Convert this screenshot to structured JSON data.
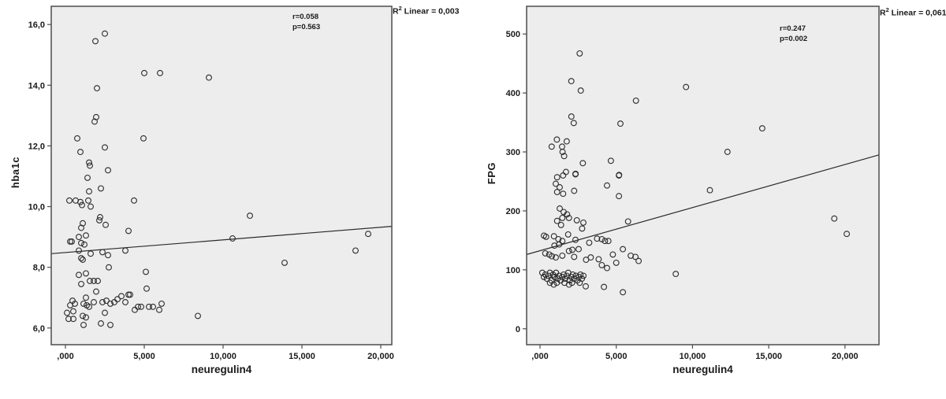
{
  "page": {
    "background": "#ffffff"
  },
  "chart_data": [
    {
      "type": "scatter",
      "title": "",
      "xlabel": "neuregulin4",
      "ylabel": "hba1c",
      "xlim": [
        -900,
        20700
      ],
      "ylim": [
        5.45,
        16.6
      ],
      "xticks": [
        0,
        5000,
        10000,
        15000,
        20000
      ],
      "xtick_labels": [
        ",000",
        "5,000",
        "10,000",
        "15,000",
        "20,000"
      ],
      "yticks": [
        6,
        8,
        10,
        12,
        14,
        16
      ],
      "ytick_labels": [
        "6,0",
        "8,0",
        "10,0",
        "12,0",
        "14,0",
        "16,0"
      ],
      "annotation": {
        "line1": "r=0.058",
        "line2": "p=0.563"
      },
      "r2": {
        "base": "R",
        "sup": "2",
        "rest": " Linear = 0,003"
      },
      "fit_line": {
        "x1": -900,
        "y1": 8.45,
        "x2": 20700,
        "y2": 9.35
      },
      "plot_bg": "#ededed",
      "border_color": "#4d4d4d",
      "line_color": "#2b2b2b",
      "marker": {
        "shape": "circle-open",
        "stroke": "#2b2b2b",
        "radius": 3.4
      },
      "grid": false,
      "legend": "none",
      "points": [
        [
          2500,
          15.7
        ],
        [
          1900,
          15.45
        ],
        [
          5000,
          14.4
        ],
        [
          6000,
          14.4
        ],
        [
          9100,
          14.25
        ],
        [
          2000,
          13.9
        ],
        [
          1950,
          12.95
        ],
        [
          1850,
          12.8
        ],
        [
          750,
          12.25
        ],
        [
          4950,
          12.25
        ],
        [
          2500,
          11.95
        ],
        [
          950,
          11.8
        ],
        [
          1500,
          11.45
        ],
        [
          1550,
          11.35
        ],
        [
          2700,
          11.2
        ],
        [
          1400,
          10.95
        ],
        [
          2250,
          10.6
        ],
        [
          1500,
          10.5
        ],
        [
          250,
          10.2
        ],
        [
          650,
          10.2
        ],
        [
          950,
          10.15
        ],
        [
          1450,
          10.2
        ],
        [
          1050,
          10.05
        ],
        [
          4350,
          10.2
        ],
        [
          1600,
          10.0
        ],
        [
          11700,
          9.7
        ],
        [
          2200,
          9.65
        ],
        [
          2150,
          9.55
        ],
        [
          1100,
          9.45
        ],
        [
          2550,
          9.4
        ],
        [
          1000,
          9.3
        ],
        [
          4000,
          9.2
        ],
        [
          19200,
          9.1
        ],
        [
          1300,
          9.05
        ],
        [
          850,
          9.0
        ],
        [
          10600,
          8.95
        ],
        [
          300,
          8.85
        ],
        [
          400,
          8.85
        ],
        [
          1000,
          8.8
        ],
        [
          1200,
          8.75
        ],
        [
          850,
          8.55
        ],
        [
          18400,
          8.55
        ],
        [
          3800,
          8.55
        ],
        [
          2350,
          8.5
        ],
        [
          1600,
          8.45
        ],
        [
          2700,
          8.4
        ],
        [
          1000,
          8.3
        ],
        [
          1100,
          8.25
        ],
        [
          13900,
          8.15
        ],
        [
          2750,
          8.0
        ],
        [
          5100,
          7.85
        ],
        [
          1300,
          7.8
        ],
        [
          850,
          7.75
        ],
        [
          1550,
          7.55
        ],
        [
          1800,
          7.55
        ],
        [
          2050,
          7.55
        ],
        [
          1000,
          7.45
        ],
        [
          5150,
          7.3
        ],
        [
          1950,
          7.2
        ],
        [
          4000,
          7.1
        ],
        [
          4100,
          7.1
        ],
        [
          3550,
          7.05
        ],
        [
          1300,
          7.0
        ],
        [
          450,
          6.9
        ],
        [
          600,
          6.8
        ],
        [
          300,
          6.75
        ],
        [
          1150,
          6.8
        ],
        [
          1350,
          6.75
        ],
        [
          1500,
          6.7
        ],
        [
          1800,
          6.85
        ],
        [
          2350,
          6.85
        ],
        [
          2600,
          6.9
        ],
        [
          2850,
          6.8
        ],
        [
          3100,
          6.85
        ],
        [
          3300,
          6.95
        ],
        [
          3800,
          6.85
        ],
        [
          4400,
          6.6
        ],
        [
          4600,
          6.7
        ],
        [
          4800,
          6.7
        ],
        [
          5300,
          6.7
        ],
        [
          5550,
          6.7
        ],
        [
          5950,
          6.6
        ],
        [
          6100,
          6.8
        ],
        [
          100,
          6.5
        ],
        [
          500,
          6.55
        ],
        [
          200,
          6.3
        ],
        [
          500,
          6.3
        ],
        [
          1100,
          6.4
        ],
        [
          1300,
          6.35
        ],
        [
          1150,
          6.1
        ],
        [
          2250,
          6.15
        ],
        [
          2500,
          6.5
        ],
        [
          2850,
          6.1
        ],
        [
          8400,
          6.4
        ]
      ]
    },
    {
      "type": "scatter",
      "title": "",
      "xlabel": "neuregulin4",
      "ylabel": "FPG",
      "xlim": [
        -880,
        22230
      ],
      "ylim": [
        -27,
        547
      ],
      "xticks": [
        0,
        5000,
        10000,
        15000,
        20000
      ],
      "xtick_labels": [
        ",000",
        "5,000",
        "10,000",
        "15,000",
        "20,000"
      ],
      "yticks": [
        0,
        100,
        200,
        300,
        400,
        500
      ],
      "ytick_labels": [
        "0",
        "100",
        "200",
        "300",
        "400",
        "500"
      ],
      "annotation": {
        "line1": "r=0.247",
        "line2": "p=0.002"
      },
      "r2": {
        "base": "R",
        "sup": "2",
        "rest": " Linear = 0,061"
      },
      "fit_line": {
        "x1": -880,
        "y1": 126,
        "x2": 22230,
        "y2": 295
      },
      "plot_bg": "#ededed",
      "border_color": "#4d4d4d",
      "line_color": "#2b2b2b",
      "marker": {
        "shape": "circle-open",
        "stroke": "#2b2b2b",
        "radius": 3.4
      },
      "grid": false,
      "legend": "none",
      "points": [
        [
          2600,
          467
        ],
        [
          2050,
          420
        ],
        [
          2670,
          404
        ],
        [
          9575,
          410
        ],
        [
          6290,
          387
        ],
        [
          2055,
          360
        ],
        [
          2210,
          349
        ],
        [
          5270,
          348
        ],
        [
          14575,
          340
        ],
        [
          1105,
          321
        ],
        [
          1750,
          318
        ],
        [
          765,
          309
        ],
        [
          1445,
          309
        ],
        [
          12295,
          300
        ],
        [
          1480,
          300
        ],
        [
          1580,
          293
        ],
        [
          4645,
          285
        ],
        [
          2805,
          281
        ],
        [
          1700,
          266
        ],
        [
          2330,
          263
        ],
        [
          5185,
          261
        ],
        [
          1515,
          260
        ],
        [
          2327,
          262
        ],
        [
          5172,
          260
        ],
        [
          1120,
          257
        ],
        [
          4395,
          243
        ],
        [
          1034,
          246
        ],
        [
          1293,
          240
        ],
        [
          11140,
          235
        ],
        [
          1120,
          232
        ],
        [
          1515,
          229
        ],
        [
          2240,
          234
        ],
        [
          5172,
          225
        ],
        [
          1293,
          204
        ],
        [
          1552,
          198
        ],
        [
          1774,
          194
        ],
        [
          1463,
          188
        ],
        [
          1120,
          183
        ],
        [
          1897,
          188
        ],
        [
          2413,
          184
        ],
        [
          2845,
          180
        ],
        [
          1379,
          176
        ],
        [
          2758,
          170
        ],
        [
          5776,
          182
        ],
        [
          19300,
          187
        ],
        [
          20115,
          161
        ],
        [
          259,
          158
        ],
        [
          397,
          156
        ],
        [
          914,
          157
        ],
        [
          1205,
          152
        ],
        [
          1463,
          149
        ],
        [
          1845,
          160
        ],
        [
          2327,
          151
        ],
        [
          3740,
          153
        ],
        [
          4050,
          152
        ],
        [
          4257,
          149
        ],
        [
          3223,
          146
        ],
        [
          4482,
          149
        ],
        [
          1257,
          143
        ],
        [
          946,
          141
        ],
        [
          345,
          128
        ],
        [
          604,
          126
        ],
        [
          776,
          123
        ],
        [
          1034,
          121
        ],
        [
          1463,
          124
        ],
        [
          1897,
          132
        ],
        [
          2120,
          134
        ],
        [
          2534,
          135
        ],
        [
          2240,
          122
        ],
        [
          3016,
          117
        ],
        [
          3326,
          121
        ],
        [
          3843,
          118
        ],
        [
          4775,
          126
        ],
        [
          5431,
          135
        ],
        [
          5948,
          124
        ],
        [
          6258,
          122
        ],
        [
          6465,
          115
        ],
        [
          5000,
          112
        ],
        [
          4050,
          108
        ],
        [
          4395,
          103
        ],
        [
          8900,
          93
        ],
        [
          150,
          95
        ],
        [
          250,
          88
        ],
        [
          350,
          92
        ],
        [
          450,
          85
        ],
        [
          550,
          90
        ],
        [
          650,
          95
        ],
        [
          750,
          82
        ],
        [
          850,
          92
        ],
        [
          950,
          88
        ],
        [
          1050,
          95
        ],
        [
          1150,
          85
        ],
        [
          1250,
          90
        ],
        [
          1350,
          82
        ],
        [
          1450,
          88
        ],
        [
          1550,
          92
        ],
        [
          1650,
          85
        ],
        [
          1750,
          90
        ],
        [
          1850,
          95
        ],
        [
          1950,
          82
        ],
        [
          2050,
          88
        ],
        [
          2150,
          92
        ],
        [
          2250,
          85
        ],
        [
          2350,
          90
        ],
        [
          2450,
          82
        ],
        [
          2550,
          88
        ],
        [
          2650,
          92
        ],
        [
          2750,
          85
        ],
        [
          2850,
          90
        ],
        [
          650,
          78
        ],
        [
          1100,
          78
        ],
        [
          1600,
          78
        ],
        [
          2100,
          78
        ],
        [
          2600,
          78
        ],
        [
          900,
          75
        ],
        [
          1900,
          75
        ],
        [
          4190,
          71
        ],
        [
          5431,
          62
        ],
        [
          3000,
          72
        ]
      ]
    }
  ]
}
